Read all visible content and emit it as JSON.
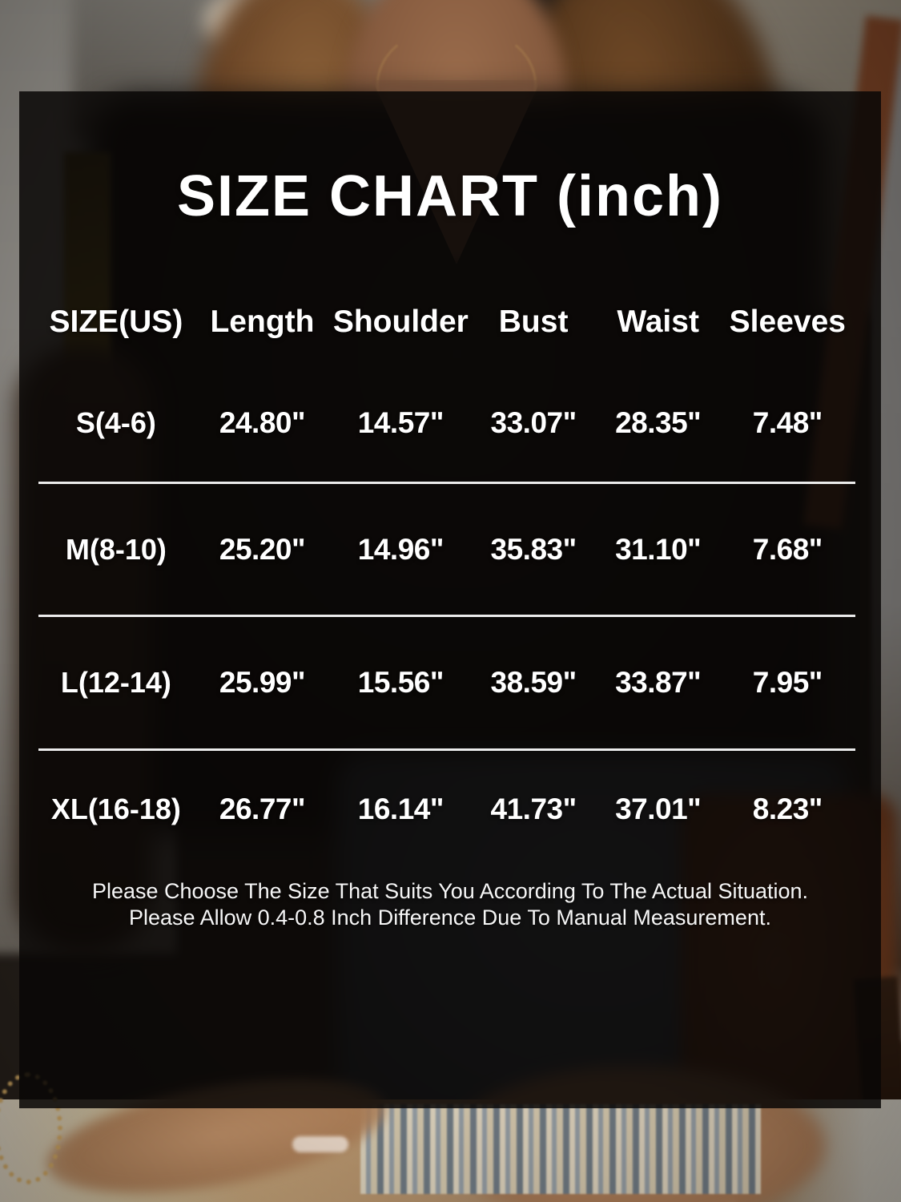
{
  "colors": {
    "overlay_panel": "rgba(9,7,6,0.86)",
    "text": "#ffffff",
    "separator": "#ececec"
  },
  "chart_data": {
    "type": "table",
    "title": "SIZE CHART (inch)",
    "unit": "inch",
    "columns": [
      "SIZE(US)",
      "Length",
      "Shoulder",
      "Bust",
      "Waist",
      "Sleeves"
    ],
    "rows": [
      [
        "S(4-6)",
        "24.80\"",
        "14.57\"",
        "33.07\"",
        "28.35\"",
        "7.48\""
      ],
      [
        "M(8-10)",
        "25.20\"",
        "14.96\"",
        "35.83\"",
        "31.10\"",
        "7.68\""
      ],
      [
        "L(12-14)",
        "25.99\"",
        "15.56\"",
        "38.59\"",
        "33.87\"",
        "7.95\""
      ],
      [
        "XL(16-18)",
        "26.77\"",
        "16.14\"",
        "41.73\"",
        "37.01\"",
        "8.23\""
      ]
    ],
    "notes": [
      "Please Choose The Size That Suits You According To The Actual Situation.",
      "Please Allow 0.4-0.8 Inch Difference Due To Manual Measurement."
    ]
  }
}
